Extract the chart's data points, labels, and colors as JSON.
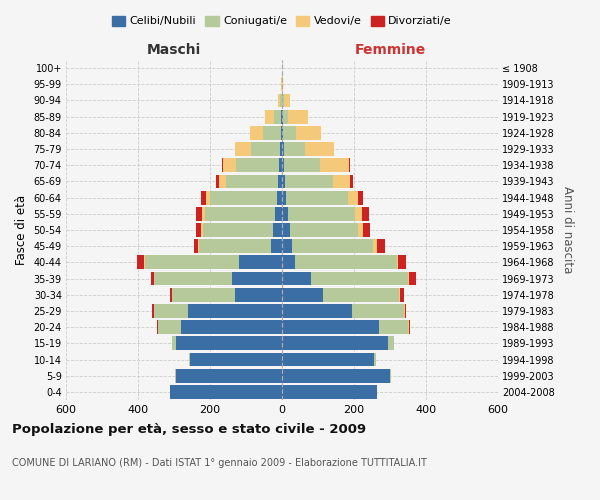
{
  "age_groups": [
    "0-4",
    "5-9",
    "10-14",
    "15-19",
    "20-24",
    "25-29",
    "30-34",
    "35-39",
    "40-44",
    "45-49",
    "50-54",
    "55-59",
    "60-64",
    "65-69",
    "70-74",
    "75-79",
    "80-84",
    "85-89",
    "90-94",
    "95-99",
    "100+"
  ],
  "birth_years": [
    "2004-2008",
    "1999-2003",
    "1994-1998",
    "1989-1993",
    "1984-1988",
    "1979-1983",
    "1974-1978",
    "1969-1973",
    "1964-1968",
    "1959-1963",
    "1954-1958",
    "1949-1953",
    "1944-1948",
    "1939-1943",
    "1934-1938",
    "1929-1933",
    "1924-1928",
    "1919-1923",
    "1914-1918",
    "1909-1913",
    "≤ 1908"
  ],
  "colors": {
    "celibi": "#3a6ea5",
    "coniugati": "#b5c99a",
    "vedovi": "#f5c97a",
    "divorziati": "#cc2222"
  },
  "males": {
    "celibi": [
      310,
      295,
      255,
      295,
      280,
      260,
      130,
      140,
      120,
      30,
      25,
      20,
      15,
      10,
      8,
      5,
      3,
      2,
      0,
      0,
      0
    ],
    "coniugati": [
      0,
      1,
      2,
      10,
      65,
      95,
      175,
      215,
      260,
      200,
      195,
      195,
      185,
      145,
      120,
      80,
      50,
      20,
      5,
      0,
      0
    ],
    "vedovi": [
      0,
      0,
      0,
      0,
      0,
      0,
      1,
      1,
      2,
      3,
      5,
      8,
      12,
      20,
      35,
      45,
      35,
      25,
      5,
      2,
      0
    ],
    "divorziati": [
      0,
      0,
      0,
      0,
      3,
      5,
      5,
      8,
      20,
      12,
      15,
      15,
      12,
      8,
      5,
      0,
      0,
      0,
      0,
      0,
      0
    ]
  },
  "females": {
    "celibi": [
      265,
      300,
      255,
      295,
      270,
      195,
      115,
      80,
      35,
      28,
      22,
      18,
      12,
      8,
      5,
      5,
      3,
      2,
      0,
      0,
      0
    ],
    "coniugati": [
      0,
      2,
      5,
      15,
      80,
      145,
      210,
      270,
      285,
      225,
      188,
      185,
      170,
      135,
      100,
      60,
      35,
      15,
      5,
      0,
      0
    ],
    "vedovi": [
      0,
      0,
      0,
      0,
      2,
      2,
      2,
      2,
      3,
      10,
      15,
      20,
      28,
      45,
      80,
      80,
      70,
      55,
      18,
      2,
      0
    ],
    "divorziati": [
      0,
      0,
      0,
      0,
      3,
      3,
      12,
      20,
      22,
      22,
      20,
      18,
      15,
      8,
      5,
      0,
      0,
      0,
      0,
      0,
      0
    ]
  },
  "xlim": 600,
  "title": "Popolazione per età, sesso e stato civile - 2009",
  "subtitle": "COMUNE DI LARIANO (RM) - Dati ISTAT 1° gennaio 2009 - Elaborazione TUTTITALIA.IT",
  "xlabel_left": "Maschi",
  "xlabel_right": "Femmine",
  "ylabel_left": "Fasce di età",
  "ylabel_right": "Anni di nascita",
  "legend_labels": [
    "Celibi/Nubili",
    "Coniugati/e",
    "Vedovi/e",
    "Divorziati/e"
  ],
  "bg_color": "#f5f5f5",
  "grid_color": "#cccccc"
}
